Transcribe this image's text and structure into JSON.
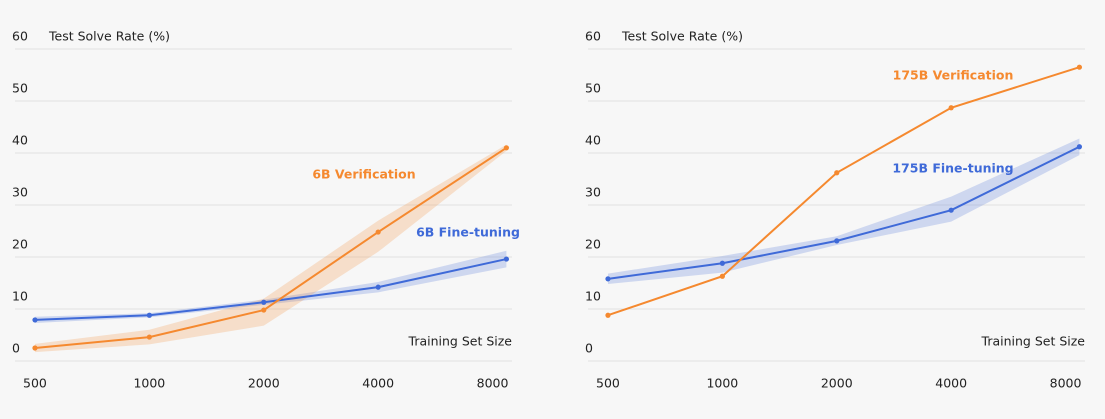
{
  "chart_data": [
    {
      "type": "line",
      "ylabel": "Test Solve Rate (%)",
      "xlabel": "Training Set Size",
      "xscale": "log",
      "xlim": [
        443,
        9000
      ],
      "xticks": [
        500,
        1000,
        2000,
        4000,
        8000
      ],
      "ylim": [
        0,
        60
      ],
      "yticks": [
        0,
        10,
        20,
        30,
        40,
        50,
        60
      ],
      "grid": true,
      "x": [
        500,
        1000,
        2000,
        4000,
        8700
      ],
      "series": [
        {
          "name": "6B Fine-tuning",
          "color": "#3f6ad8",
          "values": [
            7.9,
            8.8,
            11.3,
            14.2,
            19.6
          ],
          "lower": [
            7.3,
            8.4,
            10.8,
            13.2,
            18.0
          ],
          "upper": [
            8.5,
            9.2,
            11.8,
            15.2,
            21.2
          ]
        },
        {
          "name": "6B Verification",
          "color": "#f5892f",
          "values": [
            2.5,
            4.6,
            9.8,
            24.8,
            41.0
          ],
          "lower": [
            1.7,
            3.2,
            6.8,
            21.0,
            40.4
          ],
          "upper": [
            3.3,
            6.0,
            12.0,
            27.0,
            41.6
          ]
        }
      ]
    },
    {
      "type": "line",
      "ylabel": "Test Solve Rate (%)",
      "xlabel": "Training Set Size",
      "xscale": "log",
      "xlim": [
        443,
        9000
      ],
      "xticks": [
        500,
        1000,
        2000,
        4000,
        8000
      ],
      "ylim": [
        0,
        60
      ],
      "yticks": [
        0,
        10,
        20,
        30,
        40,
        50,
        60
      ],
      "grid": true,
      "x": [
        500,
        1000,
        2000,
        4000,
        8700
      ],
      "series": [
        {
          "name": "175B Fine-tuning",
          "color": "#3f6ad8",
          "values": [
            15.8,
            18.8,
            23.1,
            29.0,
            41.2
          ],
          "lower": [
            14.8,
            17.0,
            22.3,
            26.8,
            39.6
          ],
          "upper": [
            16.8,
            20.2,
            24.0,
            31.6,
            42.8
          ]
        },
        {
          "name": "175B Verification",
          "color": "#f5892f",
          "values": [
            8.8,
            16.3,
            36.2,
            48.7,
            56.5
          ]
        }
      ]
    }
  ]
}
